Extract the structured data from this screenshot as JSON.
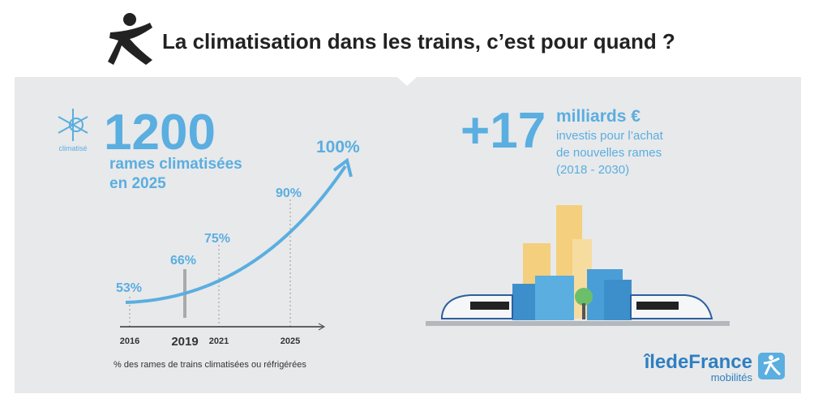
{
  "header": {
    "title": "La climatisation dans les trains, c’est pour quand ?"
  },
  "left": {
    "icon_label": "climatisé",
    "big_number": "1200",
    "subtitle_lines": [
      "rames climatisées",
      "en 2025"
    ]
  },
  "curve": {
    "labels": [
      "53%",
      "66%",
      "75%",
      "90%",
      "100%"
    ],
    "years": [
      "2016",
      "2019",
      "2021",
      "2025"
    ],
    "caption": "% des rames de trains climatisées ou réfrigérées"
  },
  "right": {
    "big_number": "+17",
    "unit": "milliards €",
    "lines": [
      "investis pour l’achat",
      "de nouvelles rames",
      "(2018 - 2030)"
    ]
  },
  "logo": {
    "brand_main": "îledeFrance",
    "brand_sub": "mobilités"
  }
}
